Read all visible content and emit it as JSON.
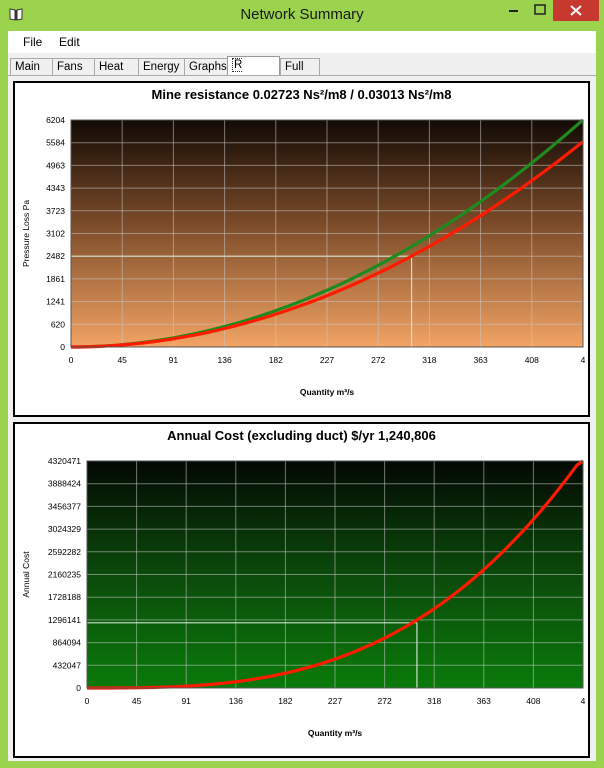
{
  "window": {
    "title": "Network Summary"
  },
  "menu": [
    "File",
    "Edit"
  ],
  "tabs": [
    "Main",
    "Fans",
    "Heat",
    "Energy",
    "Graphs",
    "R Curve",
    "Full"
  ],
  "active_tab": "R Curve",
  "colors": {
    "series_current": "#1f8a1f",
    "series_red": "#ff1a00",
    "crosshair": "#cfe0cf"
  },
  "chart_data": [
    {
      "type": "line",
      "title": "Mine resistance 0.02723 Ns²/m8 / 0.03013 Ns²/m8",
      "xlabel": "Quantity  m³/s",
      "ylabel": "Pressure Loss  Pa",
      "x_ticks": [
        "0",
        "45",
        "91",
        "136",
        "182",
        "227",
        "272",
        "318",
        "363",
        "408",
        "4"
      ],
      "y_ticks": [
        "0",
        "620",
        "1241",
        "1861",
        "2482",
        "3102",
        "3723",
        "4343",
        "4963",
        "5584",
        "6204"
      ],
      "xlim": [
        0,
        454
      ],
      "ylim": [
        0,
        6204
      ],
      "series": [
        {
          "k": 0.03013,
          "x_max": 454
        },
        {
          "k": 0.02723,
          "x_max": 454
        }
      ],
      "crosshair": {
        "x": 302,
        "y": 2482
      },
      "background": "brown-orange-gradient"
    },
    {
      "type": "line",
      "title": "Annual Cost (excluding duct) $/yr 1,240,806",
      "xlabel": "Quantity  m³/s",
      "ylabel": "Annual Cost",
      "x_ticks": [
        "0",
        "45",
        "91",
        "136",
        "182",
        "227",
        "272",
        "318",
        "363",
        "408",
        "4"
      ],
      "y_ticks": [
        "0",
        "432047",
        "864094",
        "1296141",
        "1728188",
        "2160235",
        "2592282",
        "3024329",
        "3456377",
        "3888424",
        "4320471"
      ],
      "xlim": [
        0,
        454
      ],
      "ylim": [
        0,
        4320471
      ],
      "series": [
        {
          "coef": 0.04703,
          "exp": 3,
          "x_max": 454
        }
      ],
      "crosshair": {
        "x": 302,
        "y": 1240806
      },
      "background": "black-green-gradient"
    }
  ]
}
